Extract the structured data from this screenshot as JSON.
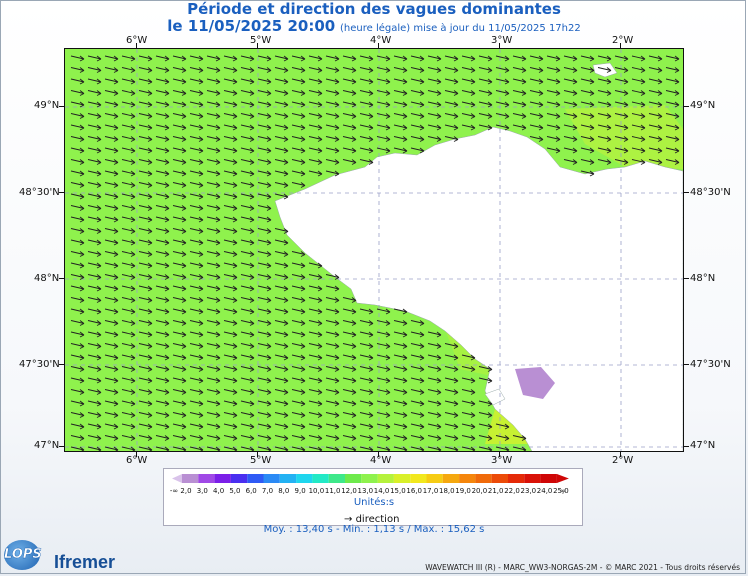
{
  "title": "Période et direction des vagues dominantes",
  "subtitle": {
    "date": "le 11/05/2025 20:00",
    "note": "(heure légale) mise à jour du 11/05/2025 17h22"
  },
  "map": {
    "lon_labels": [
      "6°W",
      "5°W",
      "4°W",
      "3°W",
      "2°W"
    ],
    "lat_labels": [
      "49°N",
      "48°30'N",
      "48°N",
      "47°30'N",
      "47°N"
    ],
    "sea_color": "#8ff24d",
    "land_color": "#ffffff",
    "wave_direction": "east-southeast"
  },
  "legend": {
    "low_label": "-∞",
    "high_label": "∞",
    "ticks": [
      "2,0",
      "3,0",
      "4,0",
      "5,0",
      "6,0",
      "7,0",
      "8,0",
      "9,0",
      "10,0",
      "11,0",
      "12,0",
      "13,0",
      "14,0",
      "15,0",
      "16,0",
      "17,0",
      "18,0",
      "19,0",
      "20,0",
      "21,0",
      "22,0",
      "23,0",
      "24,0",
      "25,0"
    ],
    "colors": [
      "#b98fd3",
      "#a049e6",
      "#7b1fe8",
      "#4a2ff0",
      "#2f5af5",
      "#2b8af5",
      "#23b2f3",
      "#1fd6ee",
      "#22e9c6",
      "#3ee88a",
      "#6eea4c",
      "#8ff24d",
      "#b5f23c",
      "#d9f02a",
      "#f2e81e",
      "#f6cc14",
      "#f5a80f",
      "#f5860c",
      "#f06a0a",
      "#ec4b08",
      "#e52a08",
      "#d91208",
      "#cf0606"
    ],
    "unit": "Unités:s",
    "direction_label": "direction"
  },
  "stats": "Moy. : 13,40 s   -   Min. : 1,13 s / Max. : 15,62 s",
  "logos": {
    "lops": "LOPS",
    "ifremer": "Ifremer"
  },
  "credits": "WAVEWATCH III (R) - MARC_WW3-NORGAS-2M - © MARC 2021 - Tous droits réservés"
}
